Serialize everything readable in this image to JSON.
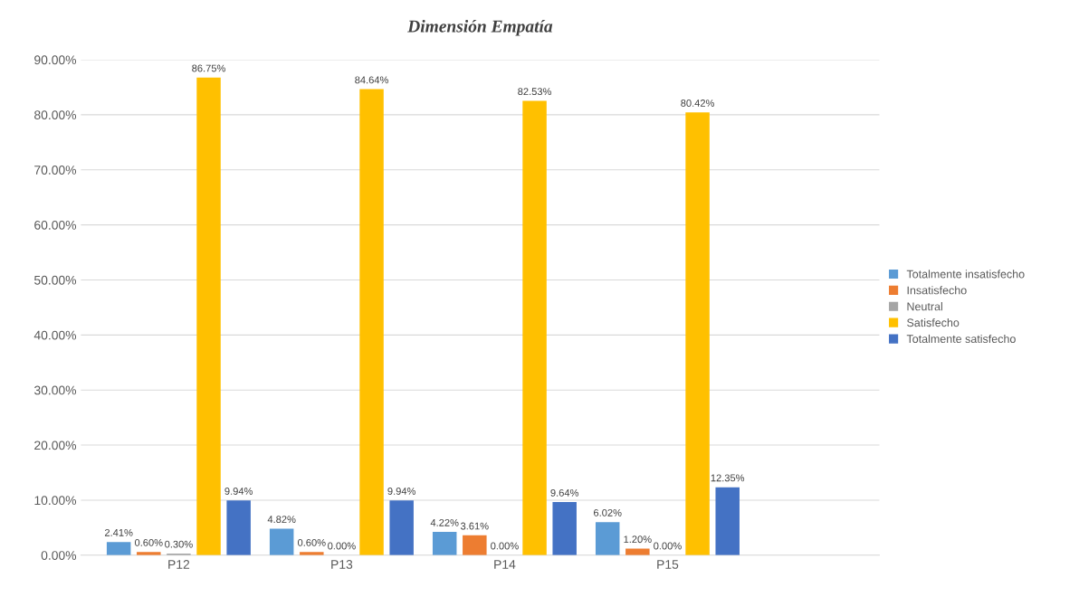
{
  "chart_data": {
    "type": "bar",
    "title": "Dimensión Empatía",
    "categories": [
      "P12",
      "P13",
      "P14",
      "P15"
    ],
    "series": [
      {
        "name": "Totalmente insatisfecho",
        "color": "#5b9bd5",
        "values": [
          2.41,
          4.82,
          4.22,
          6.02
        ],
        "value_labels": [
          "2.41%",
          "4.82%",
          "4.22%",
          "6.02%"
        ]
      },
      {
        "name": "Insatisfecho",
        "color": "#ed7d31",
        "values": [
          0.6,
          0.6,
          3.61,
          1.2
        ],
        "value_labels": [
          "0.60%",
          "0.60%",
          "3.61%",
          "1.20%"
        ]
      },
      {
        "name": "Neutral",
        "color": "#a5a5a5",
        "values": [
          0.3,
          0.0,
          0.0,
          0.0
        ],
        "value_labels": [
          "0.30%",
          "0.00%",
          "0.00%",
          "0.00%"
        ]
      },
      {
        "name": "Satisfecho",
        "color": "#ffc000",
        "values": [
          86.75,
          84.64,
          82.53,
          80.42
        ],
        "value_labels": [
          "86.75%",
          "84.64%",
          "82.53%",
          "80.42%"
        ]
      },
      {
        "name": "Totalmente satisfecho",
        "color": "#4472c4",
        "values": [
          9.94,
          9.94,
          9.64,
          12.35
        ],
        "value_labels": [
          "9.94%",
          "9.94%",
          "9.64%",
          "12.35%"
        ]
      }
    ],
    "ylim": [
      0,
      90
    ],
    "yticks": [
      {
        "value": 0,
        "label": "0.00%"
      },
      {
        "value": 10,
        "label": "10.00%"
      },
      {
        "value": 20,
        "label": "20.00%"
      },
      {
        "value": 30,
        "label": "30.00%"
      },
      {
        "value": 40,
        "label": "40.00%"
      },
      {
        "value": 50,
        "label": "50.00%"
      },
      {
        "value": 60,
        "label": "60.00%"
      },
      {
        "value": 70,
        "label": "70.00%"
      },
      {
        "value": 80,
        "label": "80.00%"
      },
      {
        "value": 90,
        "label": "90.00%"
      }
    ],
    "grid": "y",
    "legend": "right"
  }
}
